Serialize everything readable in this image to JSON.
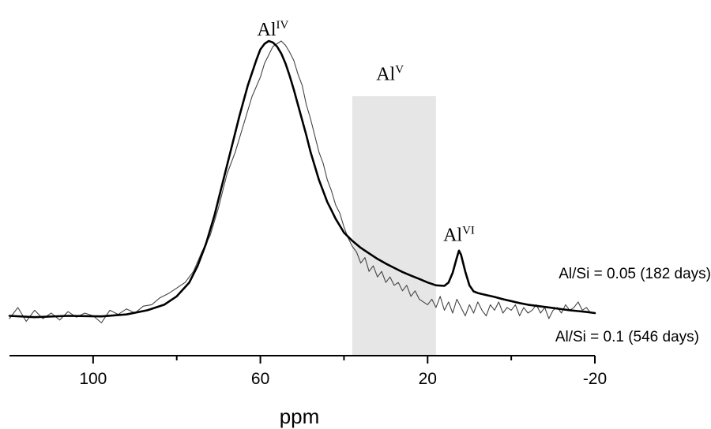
{
  "chart_data": {
    "type": "line",
    "xlabel": "ppm",
    "xlim": [
      120,
      -20
    ],
    "ylim": [
      0,
      1
    ],
    "x_reversed": true,
    "xticks": [
      100,
      60,
      20,
      -20
    ],
    "xtick_labels": [
      "100",
      "60",
      "20",
      "-20"
    ],
    "grid": false,
    "y_axis_visible": false,
    "shaded_region": {
      "from": 38,
      "to": 18,
      "color": "#e6e6e6"
    },
    "annotations": [
      {
        "base": "Al",
        "sup": "IV",
        "x": 57,
        "y": 1.02
      },
      {
        "base": "Al",
        "sup": "V",
        "x": 29,
        "y": 0.86
      },
      {
        "base": "Al",
        "sup": "VI",
        "x": 12.5,
        "y": 0.28
      }
    ],
    "series": [
      {
        "name": "Al/Si = 0.05 (182 days)",
        "stroke": "#000000",
        "width": 2.6,
        "x": [
          120,
          114,
          106,
          98,
          92,
          87,
          83,
          80,
          77,
          75,
          73,
          71,
          69,
          67,
          65,
          63,
          61,
          60,
          59,
          58,
          57,
          56,
          55,
          54,
          53,
          52,
          51,
          50,
          49,
          48,
          47,
          46,
          45,
          44,
          43,
          42,
          41,
          40,
          38,
          36,
          34,
          32,
          30,
          28,
          26,
          24,
          22,
          20,
          18,
          16,
          15,
          14,
          13,
          12.5,
          12,
          11,
          10,
          9,
          8,
          6,
          4,
          2,
          0,
          -2,
          -4,
          -6,
          -8,
          -10,
          -12,
          -14,
          -16,
          -18,
          -20
        ],
        "y": [
          0.01,
          0.005,
          0.01,
          0.008,
          0.015,
          0.03,
          0.05,
          0.08,
          0.13,
          0.19,
          0.27,
          0.37,
          0.49,
          0.61,
          0.73,
          0.84,
          0.93,
          0.97,
          0.99,
          1.0,
          0.995,
          0.98,
          0.955,
          0.92,
          0.875,
          0.825,
          0.77,
          0.715,
          0.66,
          0.6,
          0.55,
          0.5,
          0.46,
          0.42,
          0.39,
          0.36,
          0.335,
          0.31,
          0.28,
          0.255,
          0.235,
          0.215,
          0.198,
          0.183,
          0.168,
          0.155,
          0.143,
          0.13,
          0.12,
          0.118,
          0.13,
          0.165,
          0.22,
          0.245,
          0.23,
          0.17,
          0.12,
          0.098,
          0.092,
          0.085,
          0.078,
          0.07,
          0.063,
          0.056,
          0.05,
          0.046,
          0.042,
          0.038,
          0.034,
          0.03,
          0.027,
          0.024,
          0.02
        ]
      },
      {
        "name": "Al/Si = 0.1 (546 days)",
        "stroke": "#444444",
        "width": 1.1,
        "x": [
          120,
          118,
          116,
          114,
          112,
          110,
          108,
          106,
          104,
          102,
          100,
          98,
          96,
          94,
          92,
          90,
          88,
          86,
          84,
          82,
          80,
          78,
          76,
          74,
          72,
          70,
          68,
          66,
          64,
          62,
          60,
          59,
          58,
          57,
          56,
          55,
          54,
          53,
          52,
          51,
          50,
          49,
          48,
          47,
          46,
          45,
          44,
          43,
          42,
          41,
          40,
          39,
          38,
          37,
          36,
          35,
          34,
          33,
          32,
          31,
          30,
          29,
          28,
          27,
          26,
          25,
          24,
          23,
          22,
          21,
          20,
          19,
          18,
          17,
          16,
          15,
          14,
          13,
          12,
          11,
          10,
          9,
          8,
          7,
          6,
          5,
          4,
          3,
          2,
          1,
          0,
          -1,
          -2,
          -3,
          -4,
          -5,
          -6,
          -7,
          -8,
          -9,
          -10,
          -11,
          -12,
          -13,
          -14,
          -15,
          -16,
          -17,
          -18,
          -19,
          -20
        ],
        "y": [
          0.0,
          0.04,
          -0.01,
          0.03,
          0.0,
          0.02,
          -0.005,
          0.025,
          0.005,
          0.02,
          0.01,
          -0.015,
          0.03,
          0.015,
          0.035,
          0.02,
          0.045,
          0.05,
          0.075,
          0.09,
          0.11,
          0.13,
          0.17,
          0.24,
          0.3,
          0.4,
          0.52,
          0.6,
          0.7,
          0.8,
          0.87,
          0.92,
          0.95,
          0.98,
          0.99,
          1.0,
          0.985,
          0.96,
          0.93,
          0.88,
          0.84,
          0.77,
          0.72,
          0.66,
          0.6,
          0.56,
          0.5,
          0.46,
          0.41,
          0.38,
          0.33,
          0.29,
          0.26,
          0.24,
          0.2,
          0.22,
          0.17,
          0.19,
          0.15,
          0.17,
          0.13,
          0.15,
          0.12,
          0.13,
          0.1,
          0.12,
          0.08,
          0.1,
          0.07,
          0.06,
          0.05,
          0.07,
          0.04,
          0.08,
          0.03,
          0.06,
          0.02,
          0.07,
          0.04,
          0.01,
          0.05,
          0.02,
          0.06,
          0.03,
          0.01,
          0.05,
          0.03,
          0.06,
          0.02,
          0.04,
          0.03,
          0.05,
          0.01,
          0.04,
          0.02,
          0.03,
          0.05,
          0.02,
          0.04,
          0.0,
          0.03,
          0.04,
          0.02,
          0.05,
          0.03,
          0.04,
          0.06,
          0.03,
          0.04,
          0.02,
          0.02
        ]
      }
    ]
  }
}
